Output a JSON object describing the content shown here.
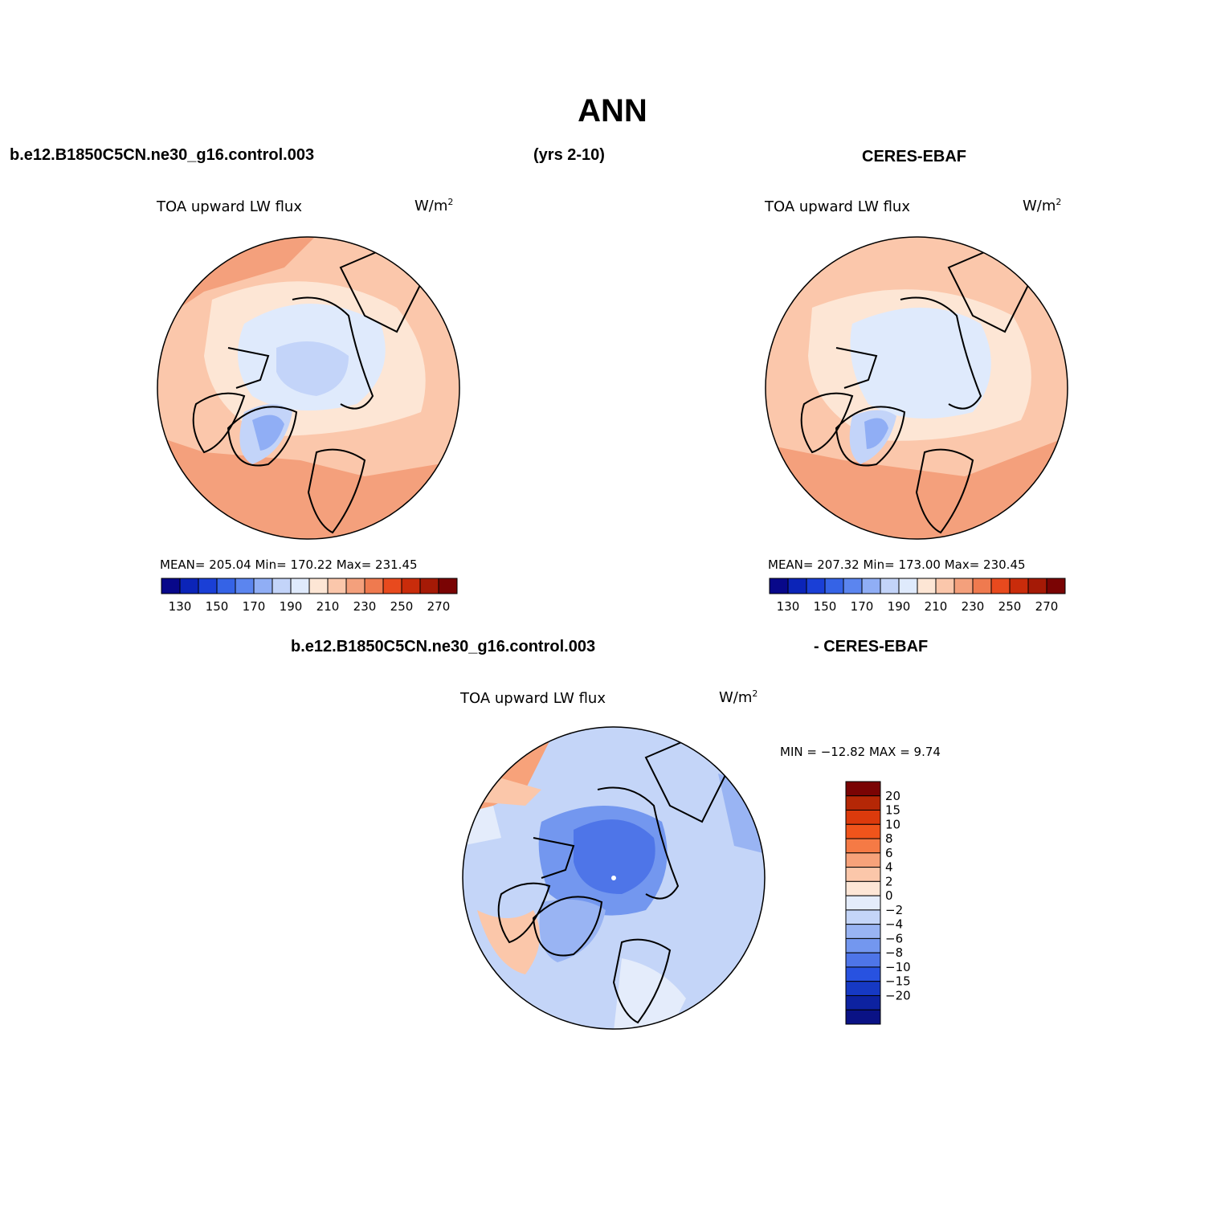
{
  "title": "ANN",
  "case_name": "b.e12.B1850C5CN.ne30_g16.control.003",
  "years": "(yrs 2-10)",
  "obs_name": "CERES-EBAF",
  "diff_case_name": "b.e12.B1850C5CN.ne30_g16.control.003",
  "diff_obs_name": "- CERES-EBAF",
  "panels": [
    {
      "id": "model",
      "variable": "TOA upward LW flux",
      "units_base": "W/m",
      "units_sup": "2",
      "stats": "MEAN= 205.04   Min= 170.22   Max= 231.45"
    },
    {
      "id": "obs",
      "variable": "TOA upward LW flux",
      "units_base": "W/m",
      "units_sup": "2",
      "stats": "MEAN= 207.32   Min= 173.00   Max= 230.45"
    },
    {
      "id": "diff",
      "variable": "TOA upward LW flux",
      "units_base": "W/m",
      "units_sup": "2",
      "stats": "MIN = −12.82  MAX =    9.74"
    }
  ],
  "abs_colorbar": {
    "colors": [
      "#08088a",
      "#0b24b8",
      "#1a3fd6",
      "#3563e6",
      "#5b85ef",
      "#90aef5",
      "#c3d4f9",
      "#dfeafc",
      "#fde6d5",
      "#fbc7ab",
      "#f4a07c",
      "#ef7a4f",
      "#e84a1e",
      "#c92c0b",
      "#a51a06",
      "#7a0404"
    ],
    "labels": [
      "130",
      "150",
      "170",
      "190",
      "210",
      "230",
      "250",
      "270"
    ]
  },
  "diff_colorbar": {
    "colors": [
      "#7a0404",
      "#b52706",
      "#dc3a0c",
      "#f0541b",
      "#f57a45",
      "#f7a27a",
      "#fbc7aa",
      "#fde6d6",
      "#e4ecfb",
      "#c4d5f8",
      "#99b4f3",
      "#7397ef",
      "#4e75e8",
      "#2852e0",
      "#1639c4",
      "#0d22a0",
      "#0a1285"
    ],
    "labels": [
      "20",
      "15",
      "10",
      "8",
      "6",
      "4",
      "2",
      "0",
      "−2",
      "−4",
      "−6",
      "−8",
      "−10",
      "−15",
      "−20"
    ]
  }
}
